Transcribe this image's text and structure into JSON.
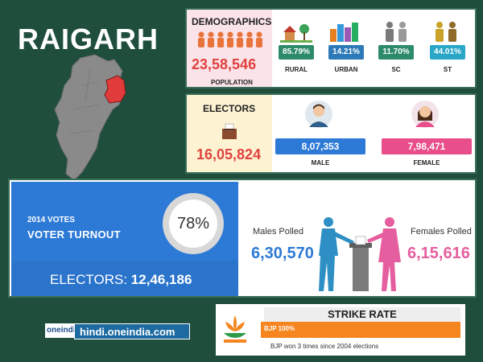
{
  "district": "RAIGARH",
  "demographics": {
    "heading": "DEMOGRAPHICS",
    "population": "23,58,546",
    "population_label": "POPULATION",
    "stats": [
      {
        "value": "85.79%",
        "label": "RURAL",
        "color": "#2e8b6a"
      },
      {
        "value": "14.21%",
        "label": "URBAN",
        "color": "#2e7ab8"
      },
      {
        "value": "11.70%",
        "label": "SC",
        "color": "#2e8b6a"
      },
      {
        "value": "44.01%",
        "label": "ST",
        "color": "#2aa7c7"
      }
    ]
  },
  "electors": {
    "heading": "ELECTORS",
    "total": "16,05,824",
    "male": {
      "value": "8,07,353",
      "label": "MALE",
      "color": "#2d7ad6"
    },
    "female": {
      "value": "7,98,471",
      "label": "FEMALE",
      "color": "#e84e8a"
    }
  },
  "turnout": {
    "year_label": "2014 VOTES",
    "title": "VOTER TURNOUT",
    "percent": "78%",
    "percent_value": 78,
    "electors_label": "ELECTORS:",
    "electors_value": "12,46,186",
    "males_polled_label": "Males Polled",
    "males_polled": "6,30,570",
    "females_polled_label": "Females Polled",
    "females_polled": "6,15,616"
  },
  "branding": {
    "logo": "oneindia",
    "site": "hindi.oneindia.com"
  },
  "strike_rate": {
    "title": "STRIKE RATE",
    "bar_text": "BJP 100%",
    "bar_value": 100,
    "note": "BJP won 3 times since 2004 elections"
  },
  "colors": {
    "background": "#1f4e3c",
    "accent_red": "#e0433e",
    "male_blue": "#2d7ad6",
    "female_pink": "#e55fa0",
    "bjp_orange": "#f5861f"
  }
}
